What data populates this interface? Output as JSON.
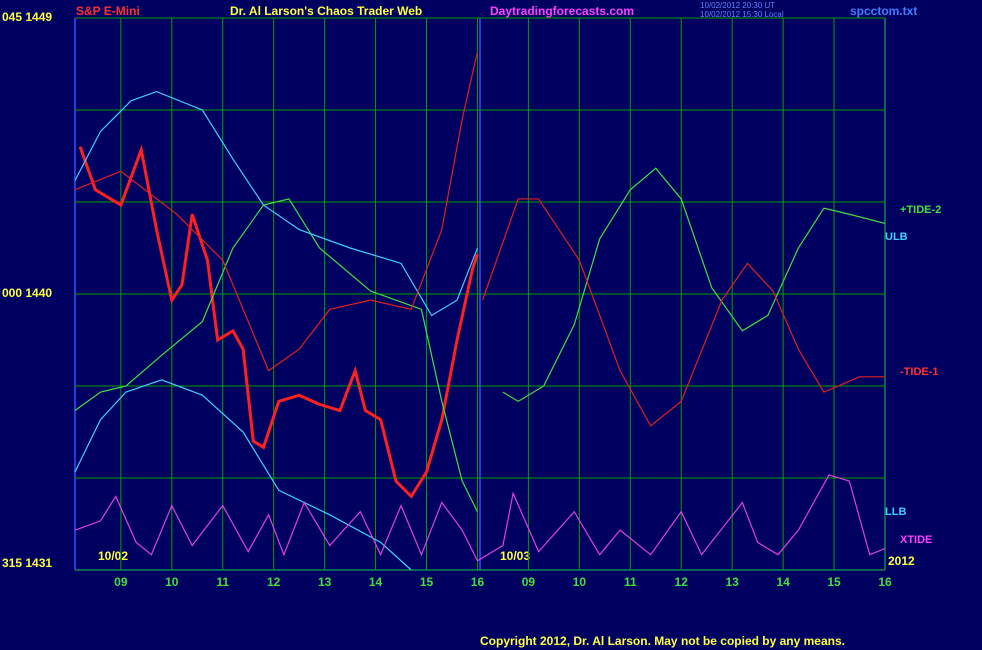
{
  "chart_data": {
    "type": "line",
    "title": "Dr. Al Larson's Chaos Trader Web",
    "instrument": "S&P E-Mini",
    "site": "Daytradingforecasts.com",
    "timestamps": [
      "10/02/2012 20:30 UT",
      "10/02/2012 15:30 Local"
    ],
    "file": "spcctom.txt",
    "copyright": "Copyright 2012, Dr. Al Larson. May not be copied by any means.",
    "date_labels": [
      "10/02",
      "10/03",
      "2012"
    ],
    "xlim": [
      8.1,
      24
    ],
    "ylim": [
      1431,
      1449
    ],
    "yticks": [
      {
        "value": 1449,
        "label": "045 1449"
      },
      {
        "value": 1440,
        "label": "000 1440"
      },
      {
        "value": 1431,
        "label": "315 1431"
      }
    ],
    "ygrid": [
      1434,
      1437,
      1443,
      1446
    ],
    "xticks": [
      {
        "value": 9,
        "label": "09"
      },
      10,
      11,
      12,
      13,
      14,
      15,
      16,
      {
        "value": 17,
        "label": "09"
      },
      {
        "value": 18,
        "label": "10"
      },
      {
        "value": 19,
        "label": "11"
      },
      {
        "value": 20,
        "label": "12"
      },
      {
        "value": 21,
        "label": "13"
      },
      {
        "value": 22,
        "label": "14"
      },
      {
        "value": 23,
        "label": "15"
      },
      {
        "value": 24,
        "label": "16"
      }
    ],
    "grid": true,
    "series": [
      {
        "color": "#ff2020",
        "x": [
          8.2,
          8.5,
          9,
          9.4,
          9.7,
          10,
          10.2,
          10.4,
          10.7,
          10.9,
          11.2,
          11.4,
          11.6,
          11.8,
          12.1,
          12.5,
          12.9,
          13.3,
          13.6,
          13.8,
          14.1,
          14.4,
          14.7,
          15,
          15.3,
          15.6,
          15.9,
          16
        ],
        "values": [
          1444.8,
          1443.4,
          1442.9,
          1444.7,
          1442.1,
          1439.8,
          1440.3,
          1442.6,
          1441.1,
          1438.5,
          1438.8,
          1438.2,
          1435.2,
          1435.0,
          1436.5,
          1436.7,
          1436.4,
          1436.2,
          1437.5,
          1436.2,
          1435.9,
          1433.9,
          1433.4,
          1434.2,
          1435.9,
          1438.5,
          1440.8,
          1441.3
        ]
      },
      {
        "name": "+TIDE-2",
        "color": "#40e040",
        "x": [
          8.1,
          8.6,
          9.1,
          9.8,
          10.6,
          11.2,
          11.8,
          12.3,
          12.9,
          13.9,
          14.9,
          15.3,
          15.7,
          16,
          16.1,
          16.5,
          16.8,
          17.3,
          17.9,
          18.4,
          19,
          19.5,
          20,
          20.6,
          21.2,
          21.7,
          22.3,
          22.8,
          23.3,
          24
        ],
        "values": [
          1436.2,
          1436.8,
          1437,
          1438,
          1439.1,
          1441.5,
          1442.9,
          1443.1,
          1441.5,
          1440.1,
          1439.5,
          1436.5,
          1433.9,
          1432.9,
          null,
          1436.8,
          1436.5,
          1437,
          1439,
          1441.8,
          1443.4,
          1444.1,
          1443.1,
          1440.2,
          1438.8,
          1439.3,
          1441.5,
          1442.8,
          1442.6,
          1442.3
        ]
      },
      {
        "name": "ULB",
        "color": "#40d0ff",
        "x": [
          8.1,
          8.6,
          9.2,
          9.7,
          10.6,
          11.2,
          11.8,
          12.5,
          13.5,
          14.5,
          15.1,
          15.6,
          16
        ],
        "values": [
          1443.7,
          1445.3,
          1446.3,
          1446.6,
          1446,
          1444.4,
          1442.9,
          1442.1,
          1441.5,
          1441,
          1439.3,
          1439.8,
          1441.5
        ]
      },
      {
        "name": "-TIDE-1",
        "color": "#e02020",
        "x": [
          8.1,
          9,
          10.1,
          11,
          11.9,
          12.5,
          13.1,
          13.9,
          14.7,
          15.3,
          15.7,
          16,
          null,
          16.1,
          16.8,
          17.2,
          18,
          18.8,
          19.4,
          20,
          20.8,
          21.3,
          21.8,
          22.3,
          22.8,
          23.5,
          24
        ],
        "values": [
          1443.4,
          1444,
          1442.6,
          1441.1,
          1437.5,
          1438.2,
          1439.5,
          1439.8,
          1439.5,
          1442.1,
          1445.7,
          1447.9,
          null,
          1439.8,
          1443.1,
          1443.1,
          1441.1,
          1437.5,
          1435.7,
          1436.5,
          1439.8,
          1441,
          1440.1,
          1438.2,
          1436.8,
          1437.3,
          1437.3
        ]
      },
      {
        "name": "LLB",
        "color": "#40d0ff",
        "x": [
          8.1,
          8.6,
          9.1,
          9.8,
          10.6,
          11.4,
          12.1,
          13.1,
          14.1,
          14.7
        ],
        "values": [
          1434.2,
          1435.9,
          1436.8,
          1437.2,
          1436.7,
          1435.5,
          1433.6,
          1432.8,
          1431.9,
          1431
        ]
      },
      {
        "name": "XTIDE",
        "color": "#e040e0",
        "x": [
          8.1,
          8.6,
          8.9,
          9.3,
          9.6,
          10,
          10.4,
          11,
          11.5,
          11.9,
          12.2,
          12.6,
          13.1,
          13.7,
          14.1,
          14.5,
          14.9,
          15.3,
          15.7,
          16,
          16.5,
          16.7,
          17.2,
          17.9,
          18.4,
          18.8,
          19.4,
          20,
          20.4,
          21.2,
          21.5,
          21.9,
          22.3,
          22.9,
          23.3,
          23.7,
          24
        ],
        "values": [
          1432.3,
          1432.6,
          1433.4,
          1431.9,
          1431.5,
          1433.1,
          1431.8,
          1433.1,
          1431.6,
          1432.8,
          1431.5,
          1433.2,
          1431.8,
          1432.9,
          1431.5,
          1433.1,
          1431.5,
          1433.2,
          1432.3,
          1431.3,
          1431.8,
          1433.5,
          1431.6,
          1432.9,
          1431.5,
          1432.3,
          1431.5,
          1432.9,
          1431.5,
          1433.2,
          1431.9,
          1431.5,
          1432.3,
          1434.1,
          1433.9,
          1431.5,
          1431.7
        ]
      }
    ]
  }
}
